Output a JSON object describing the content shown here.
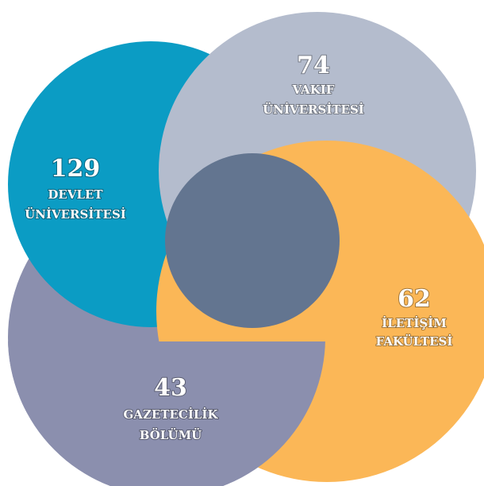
{
  "nodes": [
    {
      "value": 129,
      "lines": [
        "DEVLET",
        "ÜNİVERSİTESİ"
      ]
    },
    {
      "value": 74,
      "lines": [
        "VAKIF",
        "ÜNİVERSİTESİ"
      ]
    },
    {
      "value": 62,
      "lines": [
        "İLETİŞİM",
        "FAKÜLTESİ"
      ]
    },
    {
      "value": 43,
      "lines": [
        "GAZETECİLİK",
        "BÖLÜMÜ"
      ]
    }
  ]
}
